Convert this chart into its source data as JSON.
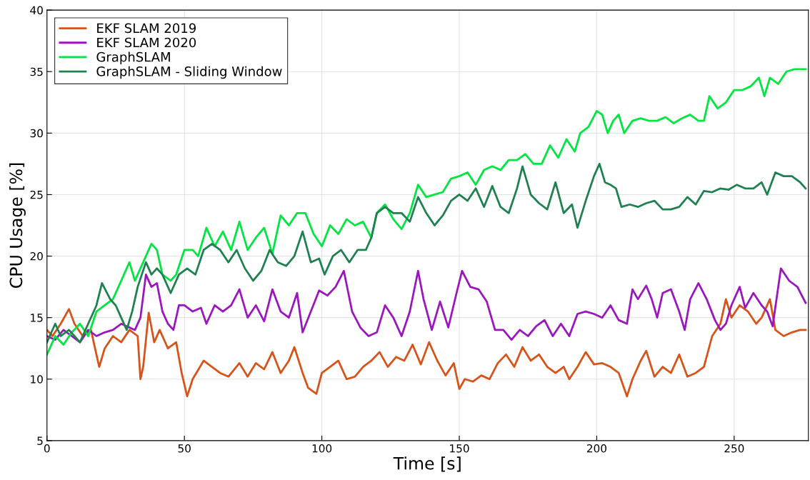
{
  "chart_data": {
    "type": "line",
    "xlabel": "Time [s]",
    "ylabel": "CPU Usage [%]",
    "xlim": [
      0,
      277
    ],
    "ylim": [
      5,
      40
    ],
    "xticks": [
      0,
      50,
      100,
      150,
      200,
      250
    ],
    "yticks": [
      5,
      10,
      15,
      20,
      25,
      30,
      35,
      40
    ],
    "grid": true,
    "legend": "top left",
    "line_style": "solid",
    "marker": "none",
    "series": [
      {
        "name": "EKF SLAM 2019",
        "color": "#d95319",
        "x": [
          0,
          2,
          5,
          8,
          10,
          13,
          16,
          18,
          19,
          21,
          24,
          27,
          30,
          33,
          34,
          35,
          37,
          39,
          41,
          44,
          47,
          49,
          51,
          53,
          57,
          60,
          63,
          66,
          70,
          73,
          76,
          79,
          82,
          85,
          88,
          90,
          93,
          95,
          98,
          100,
          103,
          106,
          109,
          112,
          115,
          118,
          121,
          124,
          127,
          130,
          133,
          136,
          139,
          142,
          145,
          148,
          150,
          152,
          155,
          158,
          161,
          164,
          167,
          170,
          173,
          176,
          179,
          182,
          185,
          188,
          190,
          193,
          196,
          199,
          202,
          205,
          208,
          211,
          213,
          216,
          218,
          221,
          224,
          227,
          230,
          233,
          236,
          239,
          242,
          245,
          247,
          249,
          252,
          255,
          258,
          260,
          263,
          265,
          268,
          271,
          274,
          276
        ],
        "values": [
          14,
          13.5,
          14.5,
          15.7,
          14.5,
          13.5,
          14,
          12,
          11,
          12.5,
          13.5,
          13,
          14,
          13.5,
          10,
          11,
          15.4,
          13,
          14,
          12.5,
          13,
          10.5,
          8.6,
          10,
          11.5,
          11,
          10.5,
          10.2,
          11.3,
          10.2,
          11.3,
          10.8,
          12.2,
          10.5,
          11.5,
          12.6,
          10.5,
          9.3,
          8.8,
          10.5,
          11,
          11.5,
          10,
          10.2,
          11,
          11.5,
          12.2,
          11,
          11.8,
          11.5,
          12.8,
          11.2,
          13,
          11.5,
          10.3,
          11.3,
          9.2,
          10,
          9.8,
          10.3,
          10,
          11.3,
          12,
          11,
          12.6,
          11.5,
          12,
          11,
          10.5,
          11,
          10,
          11,
          12.2,
          11.2,
          11.3,
          11,
          10.5,
          8.6,
          10,
          11.5,
          12.3,
          10.2,
          11,
          10.5,
          12,
          10.2,
          10.5,
          11,
          13.5,
          14.5,
          16.5,
          15,
          16,
          15.5,
          14.5,
          15,
          16.5,
          14,
          13.5,
          13.8,
          14,
          14
        ]
      },
      {
        "name": "EKF SLAM 2020",
        "color": "#9b16be",
        "x": [
          0,
          3,
          6,
          9,
          12,
          15,
          18,
          21,
          24,
          27,
          30,
          32,
          34,
          36,
          38,
          40,
          42,
          44,
          46,
          48,
          50,
          53,
          56,
          58,
          61,
          64,
          67,
          70,
          73,
          76,
          79,
          82,
          85,
          88,
          91,
          93,
          96,
          99,
          102,
          105,
          108,
          111,
          114,
          117,
          120,
          123,
          126,
          129,
          132,
          135,
          137,
          140,
          143,
          146,
          149,
          151,
          154,
          157,
          160,
          163,
          166,
          169,
          172,
          175,
          178,
          181,
          184,
          187,
          190,
          193,
          196,
          199,
          202,
          205,
          208,
          211,
          213,
          215,
          218,
          220,
          222,
          224,
          227,
          230,
          232,
          234,
          237,
          240,
          243,
          245,
          247,
          249,
          252,
          254,
          257,
          260,
          262,
          264,
          267,
          270,
          273,
          276
        ],
        "values": [
          13.5,
          13.2,
          14,
          13.5,
          13,
          14,
          13.5,
          13.8,
          14,
          14.5,
          14.2,
          14,
          15,
          18.5,
          17.5,
          17.8,
          15.5,
          14.5,
          14,
          16,
          16,
          15.5,
          15.8,
          14.5,
          16,
          15.5,
          16,
          17.3,
          15,
          16,
          14.7,
          17.3,
          15.5,
          15,
          17,
          13.8,
          15.5,
          17.2,
          16.8,
          17.5,
          18.8,
          15.5,
          14.2,
          13.5,
          13.8,
          16,
          15,
          13.5,
          15.5,
          18.8,
          16.5,
          14,
          16.3,
          14.2,
          17,
          18.8,
          17.5,
          17.3,
          16.3,
          14,
          14,
          13.2,
          14,
          13.5,
          14.3,
          14.8,
          13.5,
          14.5,
          13.5,
          15.3,
          15.5,
          15.3,
          15,
          16,
          14.8,
          14.5,
          17.3,
          16.5,
          17.6,
          16.5,
          15,
          17,
          17.3,
          15.5,
          14,
          16.5,
          17.8,
          16.5,
          14.8,
          14,
          14.5,
          16,
          17.5,
          15.8,
          17,
          16,
          15.5,
          14.3,
          19,
          18,
          17.5,
          16.2
        ]
      },
      {
        "name": "GraphSLAM",
        "color": "#00e640",
        "x": [
          0,
          3,
          6,
          9,
          12,
          15,
          18,
          21,
          24,
          27,
          30,
          32,
          35,
          38,
          40,
          42,
          45,
          47,
          50,
          53,
          55,
          58,
          61,
          64,
          67,
          70,
          73,
          76,
          79,
          82,
          85,
          88,
          91,
          94,
          97,
          100,
          103,
          106,
          109,
          112,
          115,
          118,
          120,
          123,
          126,
          129,
          132,
          135,
          138,
          141,
          144,
          147,
          150,
          153,
          156,
          159,
          162,
          165,
          168,
          171,
          174,
          177,
          180,
          183,
          186,
          189,
          192,
          194,
          197,
          200,
          202,
          204,
          206,
          208,
          210,
          213,
          216,
          219,
          222,
          225,
          228,
          231,
          234,
          237,
          239,
          241,
          244,
          247,
          250,
          253,
          256,
          259,
          261,
          263,
          266,
          269,
          272,
          276
        ],
        "values": [
          12,
          13.5,
          12.8,
          13.8,
          14.5,
          13.5,
          15.5,
          16,
          16.5,
          18,
          19.5,
          18,
          19.5,
          21,
          20.5,
          18.5,
          18,
          18.5,
          20.5,
          20.5,
          20,
          22.3,
          20.8,
          22,
          20.5,
          22.8,
          20.5,
          21.5,
          22.3,
          20.2,
          23.3,
          22.5,
          23.5,
          23.5,
          21.8,
          20.8,
          22.5,
          21.8,
          23,
          22.5,
          22.8,
          21.5,
          23.5,
          24.2,
          23,
          22.2,
          23.5,
          25.8,
          24.8,
          25,
          25.2,
          26.3,
          26.5,
          26.8,
          25.8,
          27,
          27.3,
          27,
          27.8,
          27.8,
          28.3,
          27.5,
          27.5,
          29,
          28,
          29.5,
          28.5,
          30,
          30.5,
          31.8,
          31.5,
          30,
          31,
          31.5,
          30,
          31,
          31.2,
          31,
          31,
          31.3,
          30.8,
          31.2,
          31.5,
          31,
          31,
          33,
          32,
          32.5,
          33.5,
          33.5,
          33.8,
          34.5,
          33,
          34.5,
          34,
          35,
          35.2,
          35.2
        ]
      },
      {
        "name": "GraphSLAM - Sliding Window",
        "color": "#1f8050",
        "x": [
          0,
          3,
          5,
          8,
          10,
          12,
          15,
          18,
          20,
          23,
          25,
          27,
          29,
          31,
          33,
          36,
          38,
          40,
          42,
          45,
          48,
          51,
          54,
          57,
          60,
          63,
          66,
          69,
          72,
          75,
          78,
          81,
          84,
          87,
          90,
          93,
          96,
          99,
          101,
          104,
          107,
          110,
          113,
          116,
          118,
          120,
          123,
          126,
          129,
          132,
          135,
          138,
          141,
          144,
          147,
          150,
          153,
          156,
          159,
          162,
          165,
          168,
          171,
          173,
          176,
          179,
          182,
          185,
          188,
          191,
          193,
          196,
          199,
          201,
          203,
          205,
          207,
          209,
          212,
          215,
          218,
          221,
          224,
          227,
          230,
          233,
          236,
          239,
          242,
          245,
          248,
          251,
          254,
          257,
          260,
          262,
          265,
          268,
          271,
          274,
          276
        ],
        "values": [
          13,
          14.5,
          13.5,
          14,
          13.5,
          13,
          14.5,
          16,
          17.8,
          16.5,
          16,
          15,
          14,
          15.5,
          17.5,
          19.5,
          18.5,
          19,
          18.5,
          17,
          18.5,
          19,
          18.5,
          20.5,
          21,
          20.5,
          19.5,
          20.5,
          19,
          18,
          18.8,
          20.5,
          19.5,
          19.2,
          20,
          22,
          19.5,
          19.8,
          18.5,
          20,
          20.5,
          19.5,
          20.5,
          20.5,
          21.5,
          23.5,
          24,
          23.5,
          23.5,
          22.8,
          24.8,
          23.5,
          22.5,
          23.3,
          24.5,
          25,
          24.5,
          25.5,
          24,
          25.7,
          24,
          23.5,
          25.5,
          27.3,
          25,
          24.3,
          23.8,
          26,
          23.5,
          24.2,
          22.3,
          24.5,
          26.5,
          27.5,
          26,
          25.8,
          25.5,
          24,
          24.2,
          24,
          24.3,
          24.5,
          23.8,
          23.8,
          24,
          24.8,
          24.2,
          25.3,
          25.2,
          25.5,
          25.4,
          25.8,
          25.5,
          25.5,
          26,
          25,
          26.8,
          26.5,
          26.5,
          26,
          25.5
        ]
      }
    ]
  }
}
